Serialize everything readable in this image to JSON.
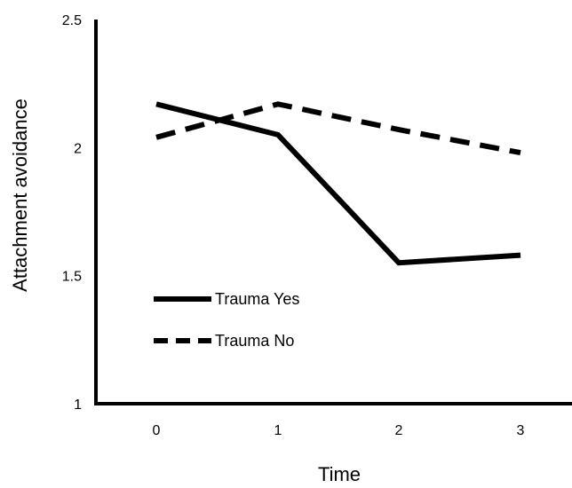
{
  "chart_data": {
    "type": "line",
    "title": "",
    "xlabel": "Time",
    "ylabel": "Attachment avoidance",
    "x": [
      0,
      1,
      2,
      3
    ],
    "x_tick_labels": [
      "0",
      "1",
      "2",
      "3"
    ],
    "ylim": [
      1,
      2.5
    ],
    "y_tick_labels": [
      "1",
      "1.5",
      "2",
      "2.5"
    ],
    "grid": false,
    "legend_position": "lower-left",
    "series": [
      {
        "name": "Trauma Yes",
        "values": [
          2.17,
          2.05,
          1.55,
          1.58
        ],
        "color": "#000000",
        "style": "solid"
      },
      {
        "name": "Trauma No",
        "values": [
          2.04,
          2.17,
          2.07,
          1.98
        ],
        "color": "#000000",
        "style": "dashed"
      }
    ]
  }
}
